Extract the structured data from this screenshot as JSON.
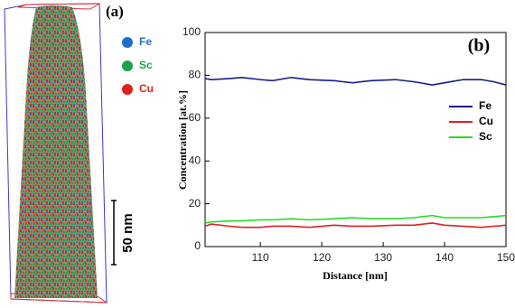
{
  "panel_a": {
    "label": "(a)",
    "legend": [
      {
        "name": "Fe",
        "color": "#1f6fc8"
      },
      {
        "name": "Sc",
        "color": "#1aa34a"
      },
      {
        "name": "Cu",
        "color": "#e0201b"
      }
    ],
    "scale_bar": "50 nm"
  },
  "chart_data": {
    "type": "line",
    "annotation": "(b)",
    "x_label": "Distance [nm]",
    "y_label": "Concentration [at.%]",
    "x": [
      101,
      102,
      105,
      107,
      110,
      112,
      115,
      118,
      122,
      125,
      128,
      132,
      135,
      138,
      140,
      143,
      146,
      148,
      150
    ],
    "series": [
      {
        "name": "Fe",
        "color": "#1a1a8c",
        "values": [
          78.5,
          78,
          78.5,
          79,
          78,
          77.5,
          79,
          78,
          77.5,
          76.5,
          77.5,
          78,
          77,
          75.5,
          76.5,
          78,
          78,
          77,
          75.5
        ]
      },
      {
        "name": "Cu",
        "color": "#e02020",
        "values": [
          9.5,
          10.5,
          9.5,
          9,
          9,
          9.5,
          9.5,
          9,
          10,
          9.5,
          9.5,
          10,
          10,
          11,
          10,
          9.5,
          9,
          9.5,
          10
        ]
      },
      {
        "name": "Sc",
        "color": "#22dd22",
        "values": [
          11,
          11.5,
          12,
          12,
          12.5,
          12.5,
          13,
          12.5,
          13,
          13.5,
          13,
          13,
          13.5,
          14.5,
          13.5,
          13.5,
          13.5,
          14,
          14.5
        ]
      }
    ],
    "xlim": [
      101,
      150
    ],
    "xticks": [
      110,
      120,
      130,
      140,
      150
    ],
    "ylim": [
      0,
      100
    ],
    "yticks": [
      0,
      20,
      40,
      60,
      80,
      100
    ],
    "legend": "right"
  }
}
